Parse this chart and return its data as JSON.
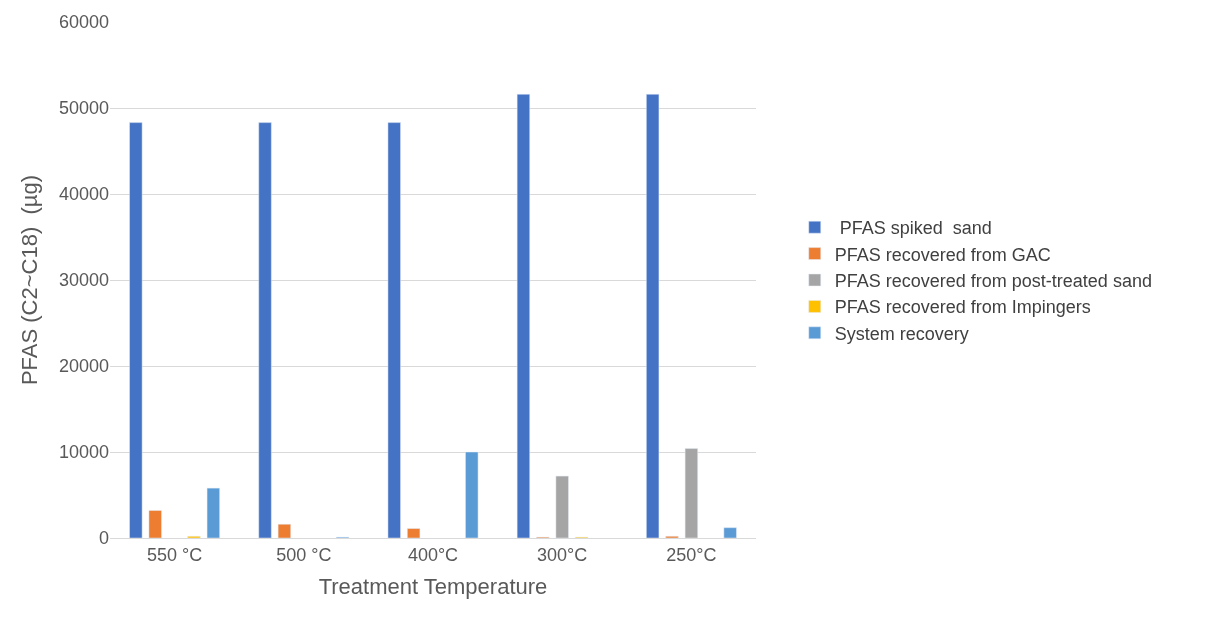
{
  "chart_data": {
    "type": "bar",
    "xlabel": "Treatment Temperature",
    "ylabel": "PFAS (C2~C18)  (µg)",
    "categories": [
      "550 °C",
      "500 °C",
      "400°C",
      "300°C",
      "250°C"
    ],
    "series": [
      {
        "name": " PFAS spiked  sand",
        "color": "#4472c4",
        "values": [
          48300,
          48300,
          48300,
          51600,
          51600
        ]
      },
      {
        "name": "PFAS recovered from GAC",
        "color": "#ed7d31",
        "values": [
          3200,
          1600,
          1100,
          100,
          200
        ]
      },
      {
        "name": "PFAS recovered from post-treated sand",
        "color": "#a5a5a5",
        "values": [
          null,
          null,
          null,
          7200,
          10400
        ]
      },
      {
        "name": "PFAS recovered from Impingers",
        "color": "#ffc000",
        "values": [
          200,
          null,
          null,
          100,
          null
        ]
      },
      {
        "name": "System recovery",
        "color": "#5b9bd5",
        "values": [
          5800,
          100,
          10000,
          null,
          1200
        ]
      }
    ],
    "ylim": [
      0,
      60000
    ],
    "yticks": [
      0,
      10000,
      20000,
      30000,
      40000,
      50000,
      60000
    ],
    "grid": "y",
    "legend": "right"
  }
}
